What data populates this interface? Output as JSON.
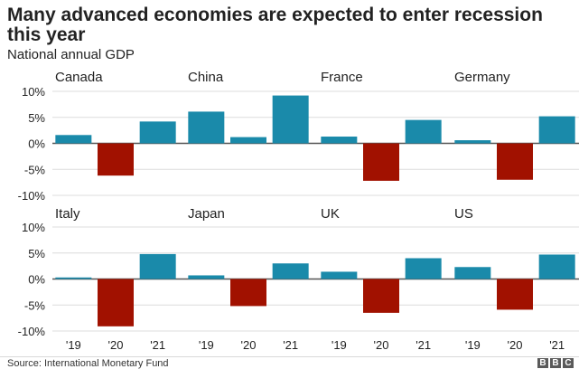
{
  "header": {
    "title": "Many advanced economies are expected to enter recession this year",
    "subtitle": "National annual GDP"
  },
  "footer": {
    "source": "Source: International Monetary Fund",
    "logo_letters": [
      "B",
      "B",
      "C"
    ]
  },
  "colors": {
    "positive": "#1a8aaa",
    "negative": "#a11100",
    "gridline": "#dcdcdc",
    "zero_line": "#555555",
    "text": "#222222"
  },
  "chart_data": {
    "type": "bar",
    "layout": "small-multiples",
    "grid": true,
    "ylim": [
      -10,
      10
    ],
    "yticks": [
      10,
      5,
      0,
      -5,
      -10
    ],
    "ytick_labels": [
      "10%",
      "5%",
      "0%",
      "-5%",
      "-10%"
    ],
    "categories": [
      "'19",
      "'20",
      "'21"
    ],
    "panels": [
      {
        "name": "Canada",
        "values": [
          1.6,
          -6.2,
          4.2
        ]
      },
      {
        "name": "China",
        "values": [
          6.1,
          1.2,
          9.2
        ]
      },
      {
        "name": "France",
        "values": [
          1.3,
          -7.2,
          4.5
        ]
      },
      {
        "name": "Germany",
        "values": [
          0.6,
          -7.0,
          5.2
        ]
      },
      {
        "name": "Italy",
        "values": [
          0.3,
          -9.1,
          4.8
        ]
      },
      {
        "name": "Japan",
        "values": [
          0.7,
          -5.2,
          3.0
        ]
      },
      {
        "name": "UK",
        "values": [
          1.4,
          -6.5,
          4.0
        ]
      },
      {
        "name": "US",
        "values": [
          2.3,
          -5.9,
          4.7
        ]
      }
    ]
  }
}
